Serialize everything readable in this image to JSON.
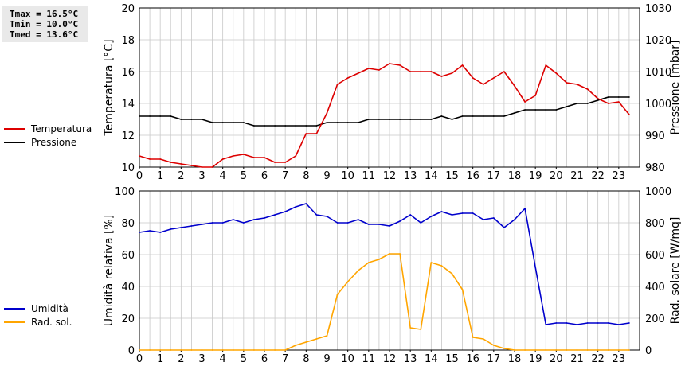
{
  "stats": {
    "tmax": "Tmax = 16.5°C",
    "tmin": "Tmin = 10.0°C",
    "tmed": "Tmed = 13.6°C"
  },
  "colors": {
    "temperatura": "#dd0000",
    "pressione": "#000000",
    "umidita": "#0000cc",
    "rad_sol": "#ffa500",
    "grid": "#c8c8c8"
  },
  "chart_data": [
    {
      "type": "line",
      "title": "",
      "xlabel": "",
      "ylabel": "Temperatura [°C]",
      "y2label": "Pressione [mbar]",
      "xlim": [
        0,
        24
      ],
      "ylim": [
        10,
        20
      ],
      "y2lim": [
        980,
        1030
      ],
      "x_ticks": [
        "0",
        "1",
        "2",
        "3",
        "4",
        "5",
        "6",
        "7",
        "8",
        "9",
        "10",
        "11",
        "12",
        "13",
        "14",
        "15",
        "16",
        "17",
        "18",
        "19",
        "20",
        "21",
        "22",
        "23"
      ],
      "y_ticks": [
        "10",
        "12",
        "14",
        "16",
        "18",
        "20"
      ],
      "y2_ticks": [
        "980",
        "990",
        "1000",
        "1010",
        "1020",
        "1030"
      ],
      "grid": true,
      "legend_position": "left",
      "x": [
        0,
        0.5,
        1,
        1.5,
        2,
        2.5,
        3,
        3.5,
        4,
        4.5,
        5,
        5.5,
        6,
        6.5,
        7,
        7.5,
        8,
        8.5,
        9,
        9.5,
        10,
        10.5,
        11,
        11.5,
        12,
        12.5,
        13,
        13.5,
        14,
        14.5,
        15,
        15.5,
        16,
        16.5,
        17,
        17.5,
        18,
        18.5,
        19,
        19.5,
        20,
        20.5,
        21,
        21.5,
        22,
        22.5,
        23,
        23.5
      ],
      "series": [
        {
          "name": "Temperatura",
          "axis": "left",
          "values": [
            10.7,
            10.5,
            10.5,
            10.3,
            10.2,
            10.1,
            10.0,
            10.0,
            10.5,
            10.7,
            10.8,
            10.6,
            10.6,
            10.3,
            10.3,
            10.7,
            12.1,
            12.1,
            13.4,
            15.2,
            15.6,
            15.9,
            16.2,
            16.1,
            16.5,
            16.4,
            16.0,
            16.0,
            16.0,
            15.7,
            15.9,
            16.4,
            15.6,
            15.2,
            15.6,
            16.0,
            15.1,
            14.1,
            14.5,
            16.4,
            15.9,
            15.3,
            15.2,
            14.9,
            14.3,
            14.0,
            14.1,
            13.3
          ]
        },
        {
          "name": "Pressione",
          "axis": "right",
          "values": [
            996,
            996,
            996,
            996,
            995,
            995,
            995,
            994,
            994,
            994,
            994,
            993,
            993,
            993,
            993,
            993,
            993,
            993,
            994,
            994,
            994,
            994,
            995,
            995,
            995,
            995,
            995,
            995,
            995,
            996,
            995,
            996,
            996,
            996,
            996,
            996,
            997,
            998,
            998,
            998,
            998,
            999,
            1000,
            1000,
            1001,
            1002,
            1002,
            1002
          ]
        }
      ]
    },
    {
      "type": "line",
      "title": "",
      "xlabel": "",
      "ylabel": "Umidità relativa [%]",
      "y2label": "Rad. solare [W/mq]",
      "xlim": [
        0,
        24
      ],
      "ylim": [
        0,
        100
      ],
      "y2lim": [
        0,
        1000
      ],
      "x_ticks": [
        "0",
        "1",
        "2",
        "3",
        "4",
        "5",
        "6",
        "7",
        "8",
        "9",
        "10",
        "11",
        "12",
        "13",
        "14",
        "15",
        "16",
        "17",
        "18",
        "19",
        "20",
        "21",
        "22",
        "23"
      ],
      "y_ticks": [
        "0",
        "20",
        "40",
        "60",
        "80",
        "100"
      ],
      "y2_ticks": [
        "0",
        "200",
        "400",
        "600",
        "800",
        "1000"
      ],
      "grid": true,
      "legend_position": "left",
      "x": [
        0,
        0.5,
        1,
        1.5,
        2,
        2.5,
        3,
        3.5,
        4,
        4.5,
        5,
        5.5,
        6,
        6.5,
        7,
        7.5,
        8,
        8.5,
        9,
        9.5,
        10,
        10.5,
        11,
        11.5,
        12,
        12.5,
        13,
        13.5,
        14,
        14.5,
        15,
        15.5,
        16,
        16.5,
        17,
        17.5,
        18,
        18.5,
        19,
        19.5,
        20,
        20.5,
        21,
        21.5,
        22,
        22.5,
        23,
        23.5
      ],
      "series": [
        {
          "name": "Umidità",
          "axis": "left",
          "values": [
            74,
            75,
            74,
            76,
            77,
            78,
            79,
            80,
            80,
            82,
            80,
            82,
            83,
            85,
            87,
            90,
            92,
            85,
            84,
            80,
            80,
            82,
            79,
            79,
            78,
            81,
            85,
            80,
            84,
            87,
            85,
            86,
            86,
            82,
            83,
            77,
            82,
            89,
            52,
            16,
            17,
            17,
            16,
            17,
            17,
            17,
            16,
            17
          ]
        },
        {
          "name": "Rad. sol.",
          "axis": "right",
          "values": [
            0,
            0,
            0,
            0,
            0,
            0,
            0,
            0,
            0,
            0,
            0,
            0,
            0,
            0,
            0,
            30,
            50,
            70,
            90,
            350,
            430,
            500,
            550,
            570,
            605,
            605,
            140,
            130,
            550,
            530,
            480,
            380,
            80,
            70,
            30,
            10,
            0,
            0,
            0,
            0,
            0,
            0,
            0,
            0,
            0,
            0,
            0,
            0
          ]
        }
      ]
    }
  ]
}
